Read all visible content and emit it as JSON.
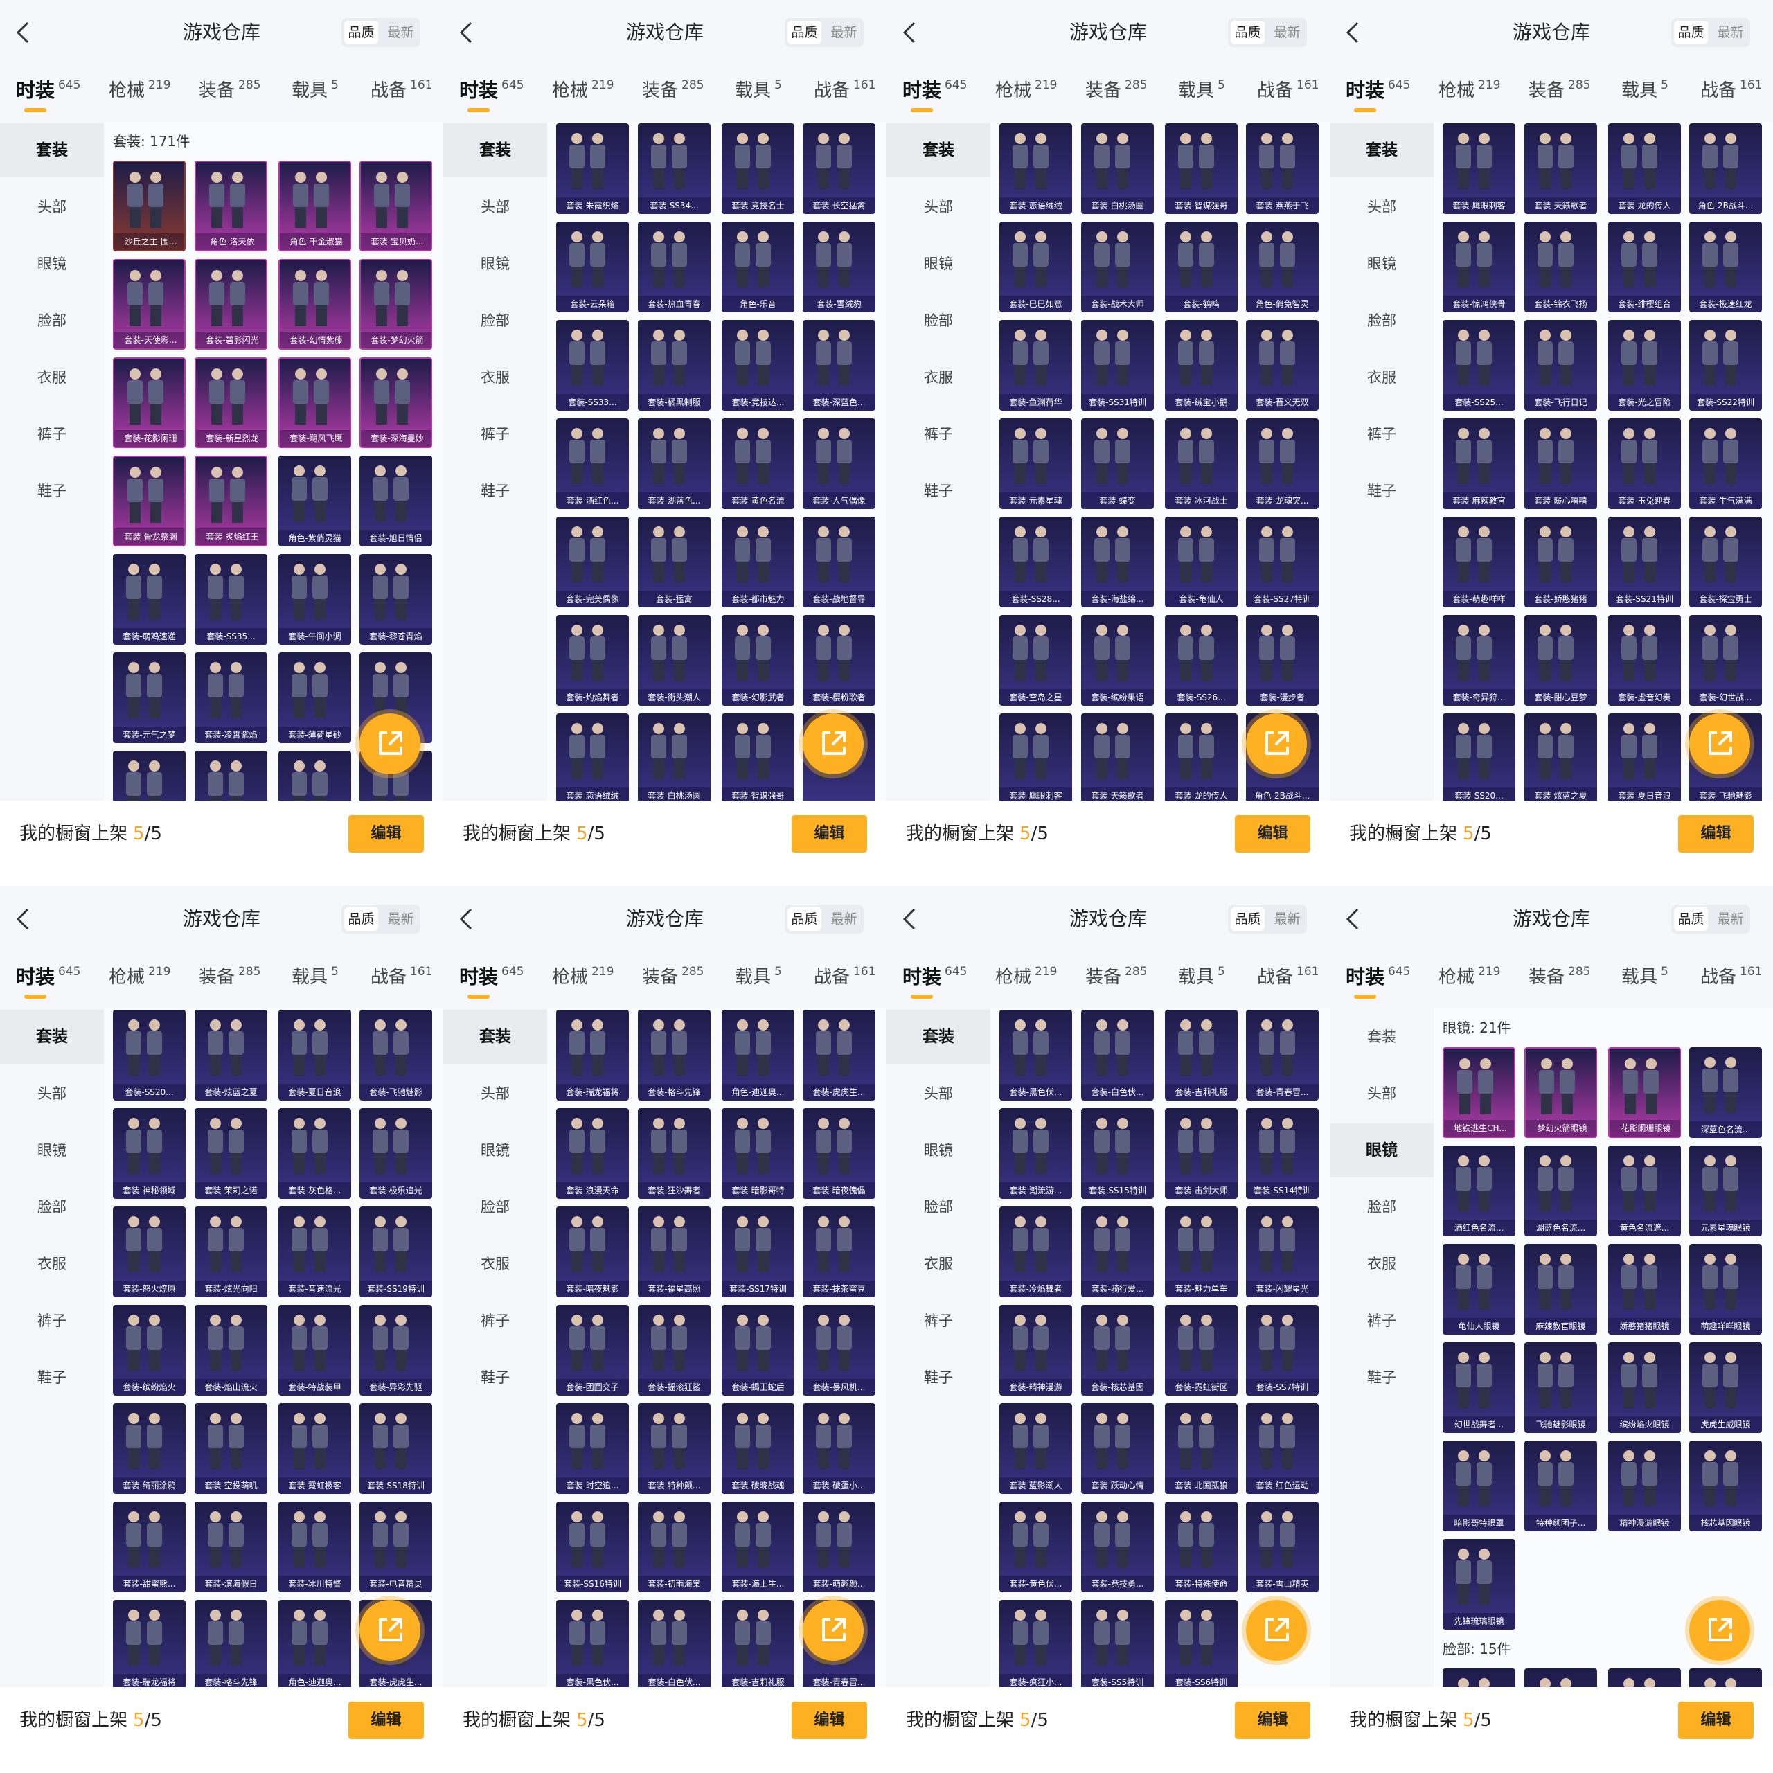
{
  "header": {
    "title": "游戏仓库",
    "sort": [
      "品质",
      "最新"
    ]
  },
  "tabs": [
    {
      "name": "时装",
      "count": 645
    },
    {
      "name": "枪械",
      "count": 219
    },
    {
      "name": "装备",
      "count": 285
    },
    {
      "name": "载具",
      "count": 5
    },
    {
      "name": "战备",
      "count": 161
    }
  ],
  "sidebar": [
    "套装",
    "头部",
    "眼镜",
    "脸部",
    "衣服",
    "裤子",
    "鞋子"
  ],
  "footer": {
    "label": "我的橱窗上架",
    "count": 5,
    "limit": "/5",
    "button": "编辑"
  },
  "tile_color": "#3a3284",
  "screens": [
    {
      "selected": 0,
      "sections": [
        {
          "title": "套装: 171件",
          "items": [
            {
              "label": "沙丘之主-围...",
              "color": "#8a3a30"
            },
            {
              "label": "角色-洛天依",
              "color": "#b23aa8"
            },
            {
              "label": "角色-千金淑猫",
              "color": "#b23aa8"
            },
            {
              "label": "套装-宝贝奶...",
              "color": "#b23aa8"
            },
            {
              "label": "套装-天使彩...",
              "color": "#b23aa8"
            },
            {
              "label": "套装-碧影闪光",
              "color": "#b23aa8"
            },
            {
              "label": "套装-幻情紫藤",
              "color": "#b23aa8"
            },
            {
              "label": "套装-梦幻火箭",
              "color": "#b23aa8"
            },
            {
              "label": "套装-花影阑珊",
              "color": "#b23aa8"
            },
            {
              "label": "套装-新星烈龙",
              "color": "#b23aa8"
            },
            {
              "label": "套装-飓风飞鹰",
              "color": "#b23aa8"
            },
            {
              "label": "套装-深海曼妙",
              "color": "#b23aa8"
            },
            {
              "label": "套装-骨龙祭渊",
              "color": "#b23aa8"
            },
            {
              "label": "套装-炙焰红王",
              "color": "#b23aa8"
            },
            "角色-紫俏灵猫",
            "套装-旭日情侣",
            "套装-萌鸡速递",
            "套装-SS35...",
            "套装-午间小调",
            "套装-黎苍青焰",
            "套装-元气之梦",
            "套装-凌霄紫焰",
            "套装-薄荷星砂",
            null,
            null,
            null,
            null,
            null
          ]
        }
      ]
    },
    {
      "selected": 0,
      "sections": [
        {
          "items": [
            "套装-朱霞织焰",
            "套装-SS34...",
            "套装-竞技名士",
            "套装-长空猛禽",
            "套装-云朵箱",
            "套装-热血青春",
            "角色-乐音",
            "套装-雪绒豹",
            "套装-SS33...",
            "套装-橘黑制服",
            "套装-竞技达...",
            "套装-深蓝色...",
            "套装-酒红色...",
            "套装-湖蓝色...",
            "套装-黄色名流",
            "套装-人气偶像",
            "套装-完美偶像",
            "套装-猛禽",
            "套装-都市魅力",
            "套装-战地督导",
            "套装-灼焰舞者",
            "套装-街头潮人",
            "套装-幻影武者",
            "套装-樱粉歌者",
            "套装-恋语绒绒",
            "套装-白桃汤圆",
            "套装-智谋强哥",
            null
          ]
        }
      ]
    },
    {
      "selected": 0,
      "sections": [
        {
          "items": [
            "套装-恋语绒绒",
            "套装-白桃汤圆",
            "套装-智谋强哥",
            "套装-燕燕于飞",
            "套装-巳巳如意",
            "套装-战术大师",
            "套装-鹤鸣",
            "角色-俏兔智灵",
            "套装-鱼渊荷华",
            "套装-SS31特训",
            "套装-绒宝小鹅",
            "套装-晋义无双",
            "套装-元素星魂",
            "套装-蝶变",
            "套装-冰河战士",
            "套装-龙魂突...",
            "套装-SS28...",
            "套装-海盐绵...",
            "套装-龟仙人",
            "套装-SS27特训",
            "套装-空岛之星",
            "套装-缤纷果语",
            "套装-SS26...",
            "套装-漫步者",
            "套装-鹰眼刺客",
            "套装-天籁歌者",
            "套装-龙的传人",
            "角色-2B战斗..."
          ]
        }
      ]
    },
    {
      "selected": 0,
      "sections": [
        {
          "items": [
            "套装-鹰眼刺客",
            "套装-天籁歌者",
            "套装-龙的传人",
            "角色-2B战斗...",
            "套装-惊鸿侠骨",
            "套装-锦衣飞扬",
            "套装-绯樱组合",
            "套装-极速红龙",
            "套装-SS25...",
            "套装-飞行日记",
            "套装-光之冒险",
            "套装-SS22特训",
            "套装-麻辣教官",
            "套装-暖心嘻嘻",
            "套装-玉兔迎春",
            "套装-牛气满满",
            "套装-萌趣咩咩",
            "套装-娇憨猪猪",
            "套装-SS21特训",
            "套装-探宝勇士",
            "套装-奇异狩...",
            "套装-甜心豆梦",
            "套装-虚音幻奏",
            "套装-幻世战...",
            "套装-SS20...",
            "套装-炫蓝之夏",
            "套装-夏日音浪",
            "套装-飞驰魅影"
          ]
        }
      ]
    },
    {
      "selected": 0,
      "sections": [
        {
          "items": [
            "套装-SS20...",
            "套装-炫蓝之夏",
            "套装-夏日音浪",
            "套装-飞驰魅影",
            "套装-神秘领域",
            "套装-茉莉之诺",
            "套装-灰色格...",
            "套装-极乐追光",
            "套装-怒火燎原",
            "套装-炫光向阳",
            "套装-音速流光",
            "套装-SS19特训",
            "套装-缤纷焰火",
            "套装-焰山流火",
            "套装-特战装甲",
            "套装-异彩先驱",
            "套装-绮丽涂鸦",
            "套装-空投萌叽",
            "套装-霓虹极客",
            "套装-SS18特训",
            "套装-甜蜜熊...",
            "套装-滨海假日",
            "套装-冰川特警",
            "套装-电音精灵",
            "套装-瑞龙福将",
            "套装-格斗先锋",
            "角色-迪迦奥...",
            "套装-虎虎生..."
          ]
        }
      ]
    },
    {
      "selected": 0,
      "sections": [
        {
          "items": [
            "套装-瑞龙福将",
            "套装-格斗先锋",
            "角色-迪迦奥...",
            "套装-虎虎生...",
            "套装-浪漫天命",
            "套装-狂沙舞者",
            "套装-暗影哥特",
            "套装-暗夜傀儡",
            "套装-暗夜魅影",
            "套装-福星高照",
            "套装-SS17特训",
            "套装-抹茶蜜豆",
            "套装-团圆交子",
            "套装-摇滚狂鲨",
            "套装-蝎王蛇后",
            "套装-暴风机...",
            "套装-时空追...",
            "套装-特种颜...",
            "套装-破晓战魂",
            "套装-破蛋小...",
            "套装-SS16特训",
            "套装-初雨海棠",
            "套装-海上生...",
            "套装-萌趣颜...",
            "套装-黑色伏...",
            "套装-白色伏...",
            "套装-吉莉礼服",
            "套装-青春冒..."
          ]
        }
      ]
    },
    {
      "selected": 0,
      "sections": [
        {
          "items": [
            "套装-黑色伏...",
            "套装-白色伏...",
            "套装-吉莉礼服",
            "套装-青春冒...",
            "套装-潮流游...",
            "套装-SS15特训",
            "套装-击剑大师",
            "套装-SS14特训",
            "套装-冷焰舞者",
            "套装-骑行爱...",
            "套装-魅力单车",
            "套装-闪耀星光",
            "套装-精神漫游",
            "套装-核芯基因",
            "套装-霓虹街区",
            "套装-SS7特训",
            "套装-蓝影潮人",
            "套装-跃动心情",
            "套装-北国孤狼",
            "套装-红色运动",
            "套装-黄色伏...",
            "套装-竞技勇...",
            "套装-特殊使命",
            "套装-雪山精英",
            "套装-疯狂小...",
            "套装-SS5特训",
            "套装-SS6特训"
          ]
        }
      ]
    },
    {
      "selected": 2,
      "sections": [
        {
          "title": "眼镜: 21件",
          "items": [
            {
              "label": "地铁逃生CH...",
              "color": "#b23aa8"
            },
            {
              "label": "梦幻火箭眼镜",
              "color": "#b23aa8"
            },
            {
              "label": "花影阑珊眼镜",
              "color": "#b23aa8"
            },
            "深蓝色名流...",
            "酒红色名流...",
            "湖蓝色名流...",
            "黄色名流遮...",
            "元素星魂眼镜",
            "龟仙人眼镜",
            "麻辣教官眼镜",
            "娇憨猪猪眼镜",
            "萌趣咩咩眼镜",
            "幻世战舞者...",
            "飞驰魅影眼镜",
            "缤纷焰火眼镜",
            "虎虎生威眼镜",
            "暗影哥特眼罩",
            "特种颜团子...",
            "精神漫游眼镜",
            "核芯基因眼镜",
            "先锋琉璃眼镜"
          ]
        },
        {
          "title": "脸部: 15件",
          "items": [
            null,
            null,
            null,
            null
          ]
        }
      ]
    }
  ]
}
